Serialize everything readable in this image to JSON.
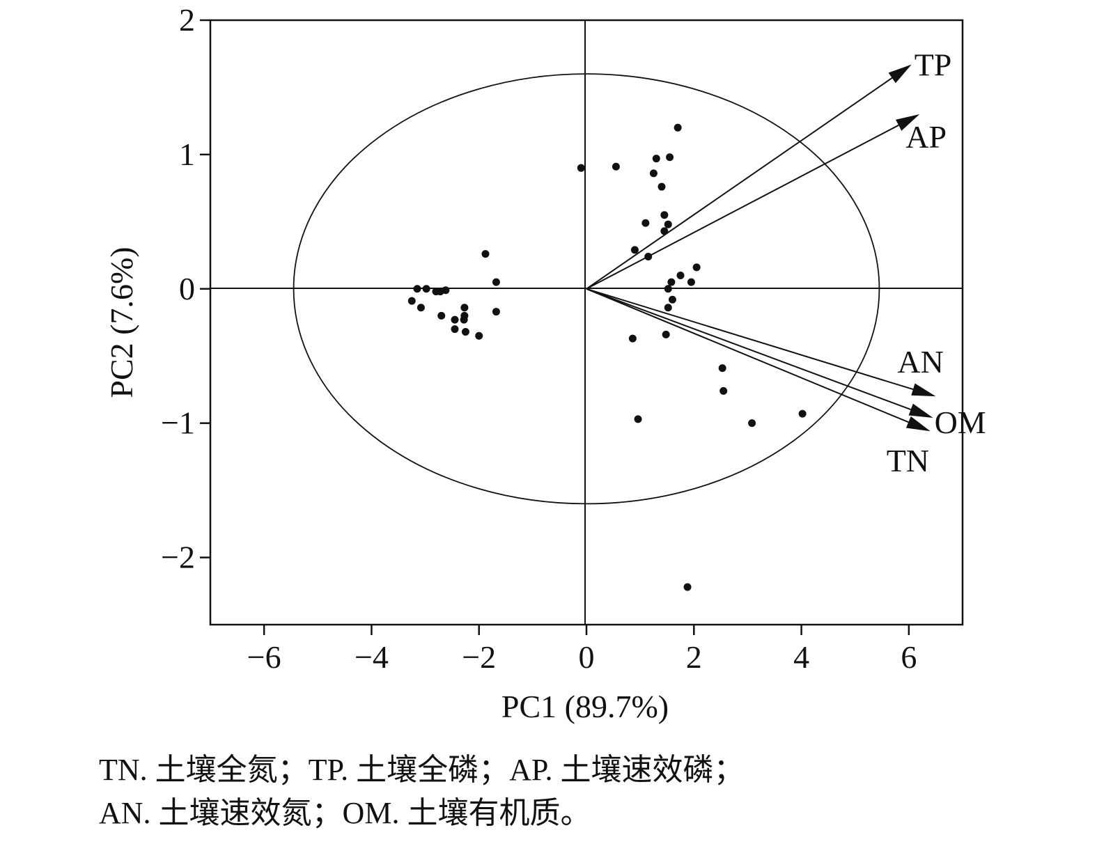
{
  "chart_data": {
    "type": "scatter",
    "title": "",
    "xlabel": "PC1 (89.7%)",
    "ylabel": "PC2 (7.6%)",
    "xlim": [
      -7,
      7
    ],
    "ylim": [
      -2.5,
      2
    ],
    "xticks": [
      -6,
      -4,
      -2,
      0,
      2,
      4,
      6
    ],
    "xtick_labels": [
      "−6",
      "−4",
      "−2",
      "0",
      "2",
      "4",
      "6"
    ],
    "yticks": [
      -2,
      -1,
      0,
      1,
      2
    ],
    "ytick_labels": [
      "−2",
      "−1",
      "0",
      "1",
      "2"
    ],
    "circle": {
      "center": [
        0,
        0
      ],
      "rx": 5.45,
      "ry": 1.6
    },
    "points": [
      {
        "x": -0.1,
        "y": 0.9
      },
      {
        "x": 0.55,
        "y": 0.91
      },
      {
        "x": 1.7,
        "y": 1.2
      },
      {
        "x": 1.3,
        "y": 0.97
      },
      {
        "x": 1.55,
        "y": 0.98
      },
      {
        "x": 1.25,
        "y": 0.86
      },
      {
        "x": 1.4,
        "y": 0.76
      },
      {
        "x": 1.45,
        "y": 0.55
      },
      {
        "x": 1.1,
        "y": 0.49
      },
      {
        "x": 1.52,
        "y": 0.48
      },
      {
        "x": 1.45,
        "y": 0.43
      },
      {
        "x": 0.9,
        "y": 0.29
      },
      {
        "x": 1.15,
        "y": 0.24
      },
      {
        "x": 2.05,
        "y": 0.16
      },
      {
        "x": 1.75,
        "y": 0.1
      },
      {
        "x": 1.58,
        "y": 0.05
      },
      {
        "x": 1.95,
        "y": 0.05
      },
      {
        "x": 1.52,
        "y": 0.0
      },
      {
        "x": 1.6,
        "y": -0.08
      },
      {
        "x": 1.52,
        "y": -0.14
      },
      {
        "x": 1.48,
        "y": -0.34
      },
      {
        "x": 0.86,
        "y": -0.37
      },
      {
        "x": 2.53,
        "y": -0.59
      },
      {
        "x": 2.55,
        "y": -0.76
      },
      {
        "x": 0.96,
        "y": -0.97
      },
      {
        "x": 3.08,
        "y": -1.0
      },
      {
        "x": 4.02,
        "y": -0.93
      },
      {
        "x": 1.88,
        "y": -2.22
      },
      {
        "x": -1.88,
        "y": 0.26
      },
      {
        "x": -1.68,
        "y": 0.05
      },
      {
        "x": -1.68,
        "y": -0.17
      },
      {
        "x": -3.15,
        "y": 0.0
      },
      {
        "x": -2.98,
        "y": 0.0
      },
      {
        "x": -2.8,
        "y": -0.02
      },
      {
        "x": -2.72,
        "y": -0.02
      },
      {
        "x": -2.62,
        "y": -0.01
      },
      {
        "x": -3.25,
        "y": -0.09
      },
      {
        "x": -3.08,
        "y": -0.14
      },
      {
        "x": -2.7,
        "y": -0.2
      },
      {
        "x": -2.27,
        "y": -0.14
      },
      {
        "x": -2.27,
        "y": -0.2
      },
      {
        "x": -2.45,
        "y": -0.23
      },
      {
        "x": -2.28,
        "y": -0.23
      },
      {
        "x": -2.45,
        "y": -0.3
      },
      {
        "x": -2.25,
        "y": -0.32
      },
      {
        "x": -2.0,
        "y": -0.35
      }
    ],
    "vectors": [
      {
        "name": "TP",
        "x": 6.05,
        "y": 1.67
      },
      {
        "name": "AP",
        "x": 6.2,
        "y": 1.3
      },
      {
        "name": "AN",
        "x": 6.5,
        "y": -0.8
      },
      {
        "name": "OM",
        "x": 6.45,
        "y": -0.96
      },
      {
        "name": "TN",
        "x": 6.4,
        "y": -1.06
      }
    ],
    "grid": false
  },
  "caption": {
    "line1": "TN. 土壤全氮；TP. 土壤全磷；AP. 土壤速效磷；",
    "line2": "AN. 土壤速效氮；OM. 土壤有机质。"
  }
}
